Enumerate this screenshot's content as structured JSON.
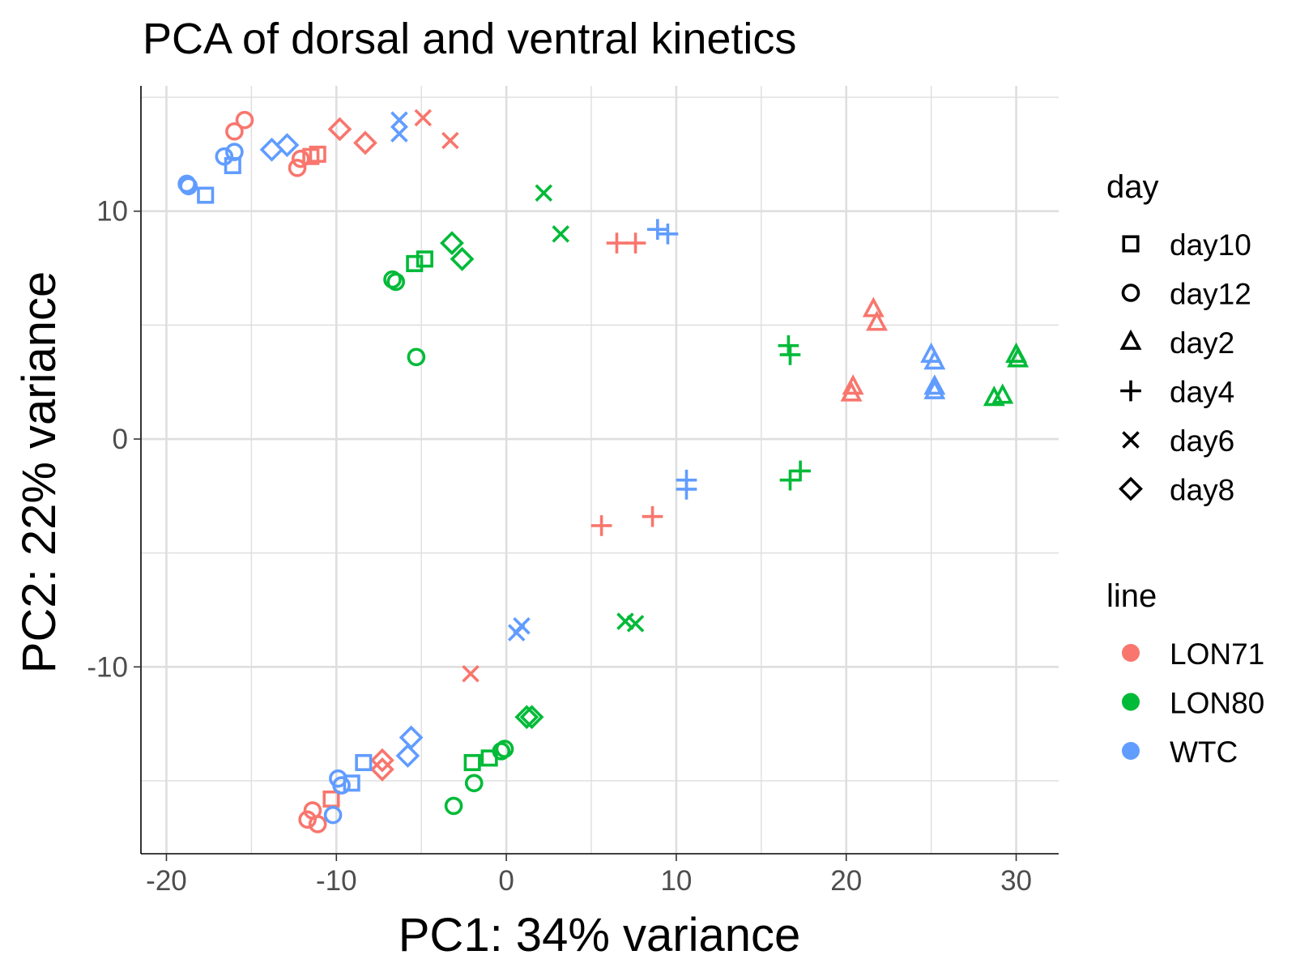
{
  "chart_data": {
    "type": "scatter",
    "title": "PCA of dorsal and ventral kinetics",
    "xlabel": "PC1: 34% variance",
    "ylabel": "PC2: 22% variance",
    "xlim": [
      -21.5,
      32.5
    ],
    "ylim": [
      -18.2,
      15.5
    ],
    "x_ticks": [
      -20,
      -10,
      0,
      10,
      20,
      30
    ],
    "y_ticks": [
      -10,
      0,
      10
    ],
    "grid": true,
    "legend_position": "right",
    "shape_legend": {
      "title": "day",
      "items": [
        {
          "label": "day10",
          "shape": "square"
        },
        {
          "label": "day12",
          "shape": "circle"
        },
        {
          "label": "day2",
          "shape": "triangle"
        },
        {
          "label": "day4",
          "shape": "plus"
        },
        {
          "label": "day6",
          "shape": "cross"
        },
        {
          "label": "day8",
          "shape": "diamond"
        }
      ]
    },
    "color_legend": {
      "title": "line",
      "items": [
        {
          "label": "LON71",
          "color": "#F8766D"
        },
        {
          "label": "LON80",
          "color": "#00BA38"
        },
        {
          "label": "WTC",
          "color": "#619CFF"
        }
      ]
    },
    "points": [
      {
        "x": -16.0,
        "y": 13.5,
        "day": "day12",
        "line": "LON71"
      },
      {
        "x": -15.4,
        "y": 14.0,
        "day": "day12",
        "line": "LON71"
      },
      {
        "x": -12.3,
        "y": 11.9,
        "day": "day12",
        "line": "LON71"
      },
      {
        "x": -12.1,
        "y": 12.3,
        "day": "day12",
        "line": "LON71"
      },
      {
        "x": -11.5,
        "y": 12.4,
        "day": "day10",
        "line": "LON71"
      },
      {
        "x": -11.1,
        "y": 12.5,
        "day": "day10",
        "line": "LON71"
      },
      {
        "x": -9.8,
        "y": 13.6,
        "day": "day8",
        "line": "LON71"
      },
      {
        "x": -8.3,
        "y": 13.0,
        "day": "day8",
        "line": "LON71"
      },
      {
        "x": -4.9,
        "y": 14.1,
        "day": "day6",
        "line": "LON71"
      },
      {
        "x": -3.3,
        "y": 13.1,
        "day": "day6",
        "line": "LON71"
      },
      {
        "x": 6.5,
        "y": 8.6,
        "day": "day4",
        "line": "LON71"
      },
      {
        "x": 7.6,
        "y": 8.6,
        "day": "day4",
        "line": "LON71"
      },
      {
        "x": 21.6,
        "y": 5.7,
        "day": "day2",
        "line": "LON71"
      },
      {
        "x": 21.8,
        "y": 5.1,
        "day": "day2",
        "line": "LON71"
      },
      {
        "x": 20.4,
        "y": 2.3,
        "day": "day2",
        "line": "LON71"
      },
      {
        "x": 20.3,
        "y": 2.0,
        "day": "day2",
        "line": "LON71"
      },
      {
        "x": 5.6,
        "y": -3.8,
        "day": "day4",
        "line": "LON71"
      },
      {
        "x": 8.6,
        "y": -3.4,
        "day": "day4",
        "line": "LON71"
      },
      {
        "x": -2.1,
        "y": -10.3,
        "day": "day6",
        "line": "LON71"
      },
      {
        "x": -7.3,
        "y": -14.1,
        "day": "day8",
        "line": "LON71"
      },
      {
        "x": -7.3,
        "y": -14.5,
        "day": "day8",
        "line": "LON71"
      },
      {
        "x": -10.3,
        "y": -15.8,
        "day": "day10",
        "line": "LON71"
      },
      {
        "x": -11.4,
        "y": -16.3,
        "day": "day12",
        "line": "LON71"
      },
      {
        "x": -11.7,
        "y": -16.7,
        "day": "day12",
        "line": "LON71"
      },
      {
        "x": -11.1,
        "y": -16.9,
        "day": "day12",
        "line": "LON71"
      },
      {
        "x": 2.2,
        "y": 10.8,
        "day": "day6",
        "line": "LON80"
      },
      {
        "x": 3.2,
        "y": 9.0,
        "day": "day6",
        "line": "LON80"
      },
      {
        "x": -3.2,
        "y": 8.6,
        "day": "day8",
        "line": "LON80"
      },
      {
        "x": -2.6,
        "y": 7.9,
        "day": "day8",
        "line": "LON80"
      },
      {
        "x": -5.4,
        "y": 7.7,
        "day": "day10",
        "line": "LON80"
      },
      {
        "x": -4.8,
        "y": 7.9,
        "day": "day10",
        "line": "LON80"
      },
      {
        "x": -6.7,
        "y": 7.0,
        "day": "day12",
        "line": "LON80"
      },
      {
        "x": -6.5,
        "y": 6.9,
        "day": "day12",
        "line": "LON80"
      },
      {
        "x": -5.3,
        "y": 3.6,
        "day": "day12",
        "line": "LON80"
      },
      {
        "x": 16.6,
        "y": 4.1,
        "day": "day4",
        "line": "LON80"
      },
      {
        "x": 16.7,
        "y": 3.7,
        "day": "day4",
        "line": "LON80"
      },
      {
        "x": 28.7,
        "y": 1.8,
        "day": "day2",
        "line": "LON80"
      },
      {
        "x": 29.2,
        "y": 1.9,
        "day": "day2",
        "line": "LON80"
      },
      {
        "x": 30.0,
        "y": 3.7,
        "day": "day2",
        "line": "LON80"
      },
      {
        "x": 30.1,
        "y": 3.5,
        "day": "day2",
        "line": "LON80"
      },
      {
        "x": 17.3,
        "y": -1.4,
        "day": "day4",
        "line": "LON80"
      },
      {
        "x": 16.7,
        "y": -1.8,
        "day": "day4",
        "line": "LON80"
      },
      {
        "x": 7.0,
        "y": -8.0,
        "day": "day6",
        "line": "LON80"
      },
      {
        "x": 7.6,
        "y": -8.1,
        "day": "day6",
        "line": "LON80"
      },
      {
        "x": 1.2,
        "y": -12.2,
        "day": "day8",
        "line": "LON80"
      },
      {
        "x": 1.5,
        "y": -12.2,
        "day": "day8",
        "line": "LON80"
      },
      {
        "x": -0.3,
        "y": -13.7,
        "day": "day12",
        "line": "LON80"
      },
      {
        "x": -0.1,
        "y": -13.6,
        "day": "day12",
        "line": "LON80"
      },
      {
        "x": -1.0,
        "y": -14.0,
        "day": "day10",
        "line": "LON80"
      },
      {
        "x": -2.0,
        "y": -14.2,
        "day": "day10",
        "line": "LON80"
      },
      {
        "x": -1.9,
        "y": -15.1,
        "day": "day12",
        "line": "LON80"
      },
      {
        "x": -3.1,
        "y": -16.1,
        "day": "day12",
        "line": "LON80"
      },
      {
        "x": -6.3,
        "y": 14.0,
        "day": "day6",
        "line": "WTC"
      },
      {
        "x": -6.3,
        "y": 13.4,
        "day": "day6",
        "line": "WTC"
      },
      {
        "x": -13.8,
        "y": 12.7,
        "day": "day8",
        "line": "WTC"
      },
      {
        "x": -12.9,
        "y": 12.9,
        "day": "day8",
        "line": "WTC"
      },
      {
        "x": -16.6,
        "y": 12.4,
        "day": "day12",
        "line": "WTC"
      },
      {
        "x": -16.0,
        "y": 12.6,
        "day": "day12",
        "line": "WTC"
      },
      {
        "x": -16.1,
        "y": 12.0,
        "day": "day10",
        "line": "WTC"
      },
      {
        "x": -18.8,
        "y": 11.2,
        "day": "day12",
        "line": "WTC"
      },
      {
        "x": -18.7,
        "y": 11.1,
        "day": "day12",
        "line": "WTC"
      },
      {
        "x": -17.7,
        "y": 10.7,
        "day": "day10",
        "line": "WTC"
      },
      {
        "x": 8.9,
        "y": 9.2,
        "day": "day4",
        "line": "WTC"
      },
      {
        "x": 9.5,
        "y": 9.0,
        "day": "day4",
        "line": "WTC"
      },
      {
        "x": 25.0,
        "y": 3.7,
        "day": "day2",
        "line": "WTC"
      },
      {
        "x": 25.2,
        "y": 3.4,
        "day": "day2",
        "line": "WTC"
      },
      {
        "x": 25.2,
        "y": 2.3,
        "day": "day2",
        "line": "WTC"
      },
      {
        "x": 25.2,
        "y": 2.1,
        "day": "day2",
        "line": "WTC"
      },
      {
        "x": 10.6,
        "y": -1.8,
        "day": "day4",
        "line": "WTC"
      },
      {
        "x": 10.6,
        "y": -2.2,
        "day": "day4",
        "line": "WTC"
      },
      {
        "x": 0.9,
        "y": -8.2,
        "day": "day6",
        "line": "WTC"
      },
      {
        "x": 0.6,
        "y": -8.5,
        "day": "day6",
        "line": "WTC"
      },
      {
        "x": -5.6,
        "y": -13.1,
        "day": "day8",
        "line": "WTC"
      },
      {
        "x": -5.8,
        "y": -13.9,
        "day": "day8",
        "line": "WTC"
      },
      {
        "x": -8.4,
        "y": -14.2,
        "day": "day10",
        "line": "WTC"
      },
      {
        "x": -9.1,
        "y": -15.1,
        "day": "day10",
        "line": "WTC"
      },
      {
        "x": -9.9,
        "y": -14.9,
        "day": "day12",
        "line": "WTC"
      },
      {
        "x": -9.7,
        "y": -15.2,
        "day": "day12",
        "line": "WTC"
      },
      {
        "x": -10.2,
        "y": -16.5,
        "day": "day12",
        "line": "WTC"
      }
    ]
  }
}
